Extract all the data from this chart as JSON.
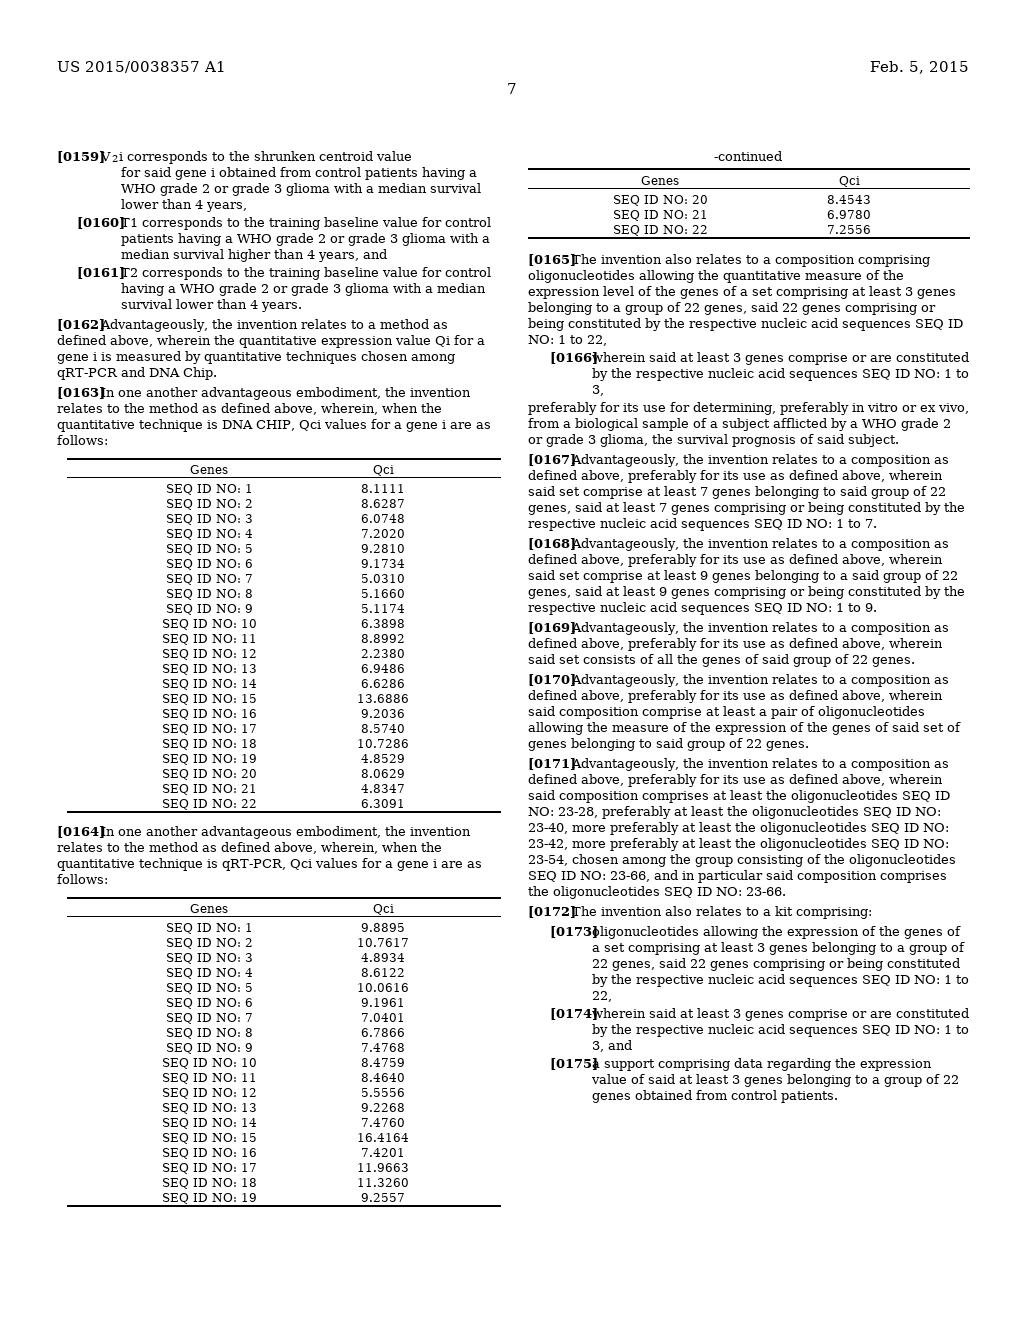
{
  "header_left": "US 2015/0038357 A1",
  "header_right": "Feb. 5, 2015",
  "page_number": "7",
  "background_color": "#ffffff",
  "continued_label": "-continued",
  "table1_continued_header": [
    "Genes",
    "Qci"
  ],
  "table1_continued_rows": [
    [
      "SEQ ID NO: 20",
      "8.4543"
    ],
    [
      "SEQ ID NO: 21",
      "6.9780"
    ],
    [
      "SEQ ID NO: 22",
      "7.2556"
    ]
  ],
  "table2_header": [
    "Genes",
    "Qci"
  ],
  "table2_rows": [
    [
      "SEQ ID NO: 1",
      "8.1111"
    ],
    [
      "SEQ ID NO: 2",
      "8.6287"
    ],
    [
      "SEQ ID NO: 3",
      "6.0748"
    ],
    [
      "SEQ ID NO: 4",
      "7.2020"
    ],
    [
      "SEQ ID NO: 5",
      "9.2810"
    ],
    [
      "SEQ ID NO: 6",
      "9.1734"
    ],
    [
      "SEQ ID NO: 7",
      "5.0310"
    ],
    [
      "SEQ ID NO: 8",
      "5.1660"
    ],
    [
      "SEQ ID NO: 9",
      "5.1174"
    ],
    [
      "SEQ ID NO: 10",
      "6.3898"
    ],
    [
      "SEQ ID NO: 11",
      "8.8992"
    ],
    [
      "SEQ ID NO: 12",
      "2.2380"
    ],
    [
      "SEQ ID NO: 13",
      "6.9486"
    ],
    [
      "SEQ ID NO: 14",
      "6.6286"
    ],
    [
      "SEQ ID NO: 15",
      "13.6886"
    ],
    [
      "SEQ ID NO: 16",
      "9.2036"
    ],
    [
      "SEQ ID NO: 17",
      "8.5740"
    ],
    [
      "SEQ ID NO: 18",
      "10.7286"
    ],
    [
      "SEQ ID NO: 19",
      "4.8529"
    ],
    [
      "SEQ ID NO: 20",
      "8.0629"
    ],
    [
      "SEQ ID NO: 21",
      "4.8347"
    ],
    [
      "SEQ ID NO: 22",
      "6.3091"
    ]
  ],
  "table3_header": [
    "Genes",
    "Qci"
  ],
  "table3_rows": [
    [
      "SEQ ID NO: 1",
      "9.8895"
    ],
    [
      "SEQ ID NO: 2",
      "10.7617"
    ],
    [
      "SEQ ID NO: 3",
      "4.8934"
    ],
    [
      "SEQ ID NO: 4",
      "8.6122"
    ],
    [
      "SEQ ID NO: 5",
      "10.0616"
    ],
    [
      "SEQ ID NO: 6",
      "9.1961"
    ],
    [
      "SEQ ID NO: 7",
      "7.0401"
    ],
    [
      "SEQ ID NO: 8",
      "6.7866"
    ],
    [
      "SEQ ID NO: 9",
      "7.4768"
    ],
    [
      "SEQ ID NO: 10",
      "8.4759"
    ],
    [
      "SEQ ID NO: 11",
      "8.4640"
    ],
    [
      "SEQ ID NO: 12",
      "5.5556"
    ],
    [
      "SEQ ID NO: 13",
      "9.2268"
    ],
    [
      "SEQ ID NO: 14",
      "7.4760"
    ],
    [
      "SEQ ID NO: 15",
      "16.4164"
    ],
    [
      "SEQ ID NO: 16",
      "7.4201"
    ],
    [
      "SEQ ID NO: 17",
      "11.9663"
    ],
    [
      "SEQ ID NO: 18",
      "11.3260"
    ],
    [
      "SEQ ID NO: 19",
      "9.2557"
    ]
  ]
}
